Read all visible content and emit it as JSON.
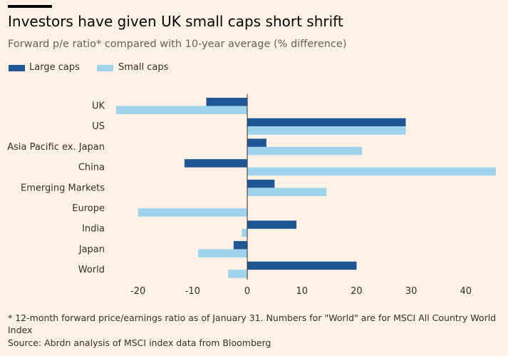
{
  "title": "Investors have given UK small caps short shrift",
  "subtitle": "Forward p/e ratio* compared with 10-year average (% difference)",
  "footnote": "* 12-month forward price/earnings ratio as of January 31. Numbers for \"World\" are for MSCI All Country World Index",
  "source": "Source: Abrdn analysis of MSCI index data from Bloomberg",
  "colors": {
    "large_caps": "#1F5796",
    "small_caps": "#9ED3EB",
    "background": "#FFF1E5",
    "axis": "#33302E",
    "grid": "#E6D9CE"
  },
  "chart_data": {
    "type": "bar",
    "orientation": "horizontal",
    "categories": [
      "UK",
      "US",
      "Asia Pacific ex. Japan",
      "China",
      "Emerging Markets",
      "Europe",
      "India",
      "Japan",
      "World"
    ],
    "series": [
      {
        "name": "Large caps",
        "values": [
          -7.5,
          29,
          3.5,
          -11.5,
          5,
          0,
          9,
          -2.5,
          20
        ]
      },
      {
        "name": "Small caps",
        "values": [
          -24,
          29,
          21,
          45.5,
          14.5,
          -20,
          -1,
          -9,
          -3.5
        ]
      }
    ],
    "xlim": [
      -24,
      45.5
    ],
    "xticks": [
      -20,
      -10,
      0,
      10,
      20,
      30,
      40
    ],
    "legend_position": "top-left",
    "grid": false
  }
}
